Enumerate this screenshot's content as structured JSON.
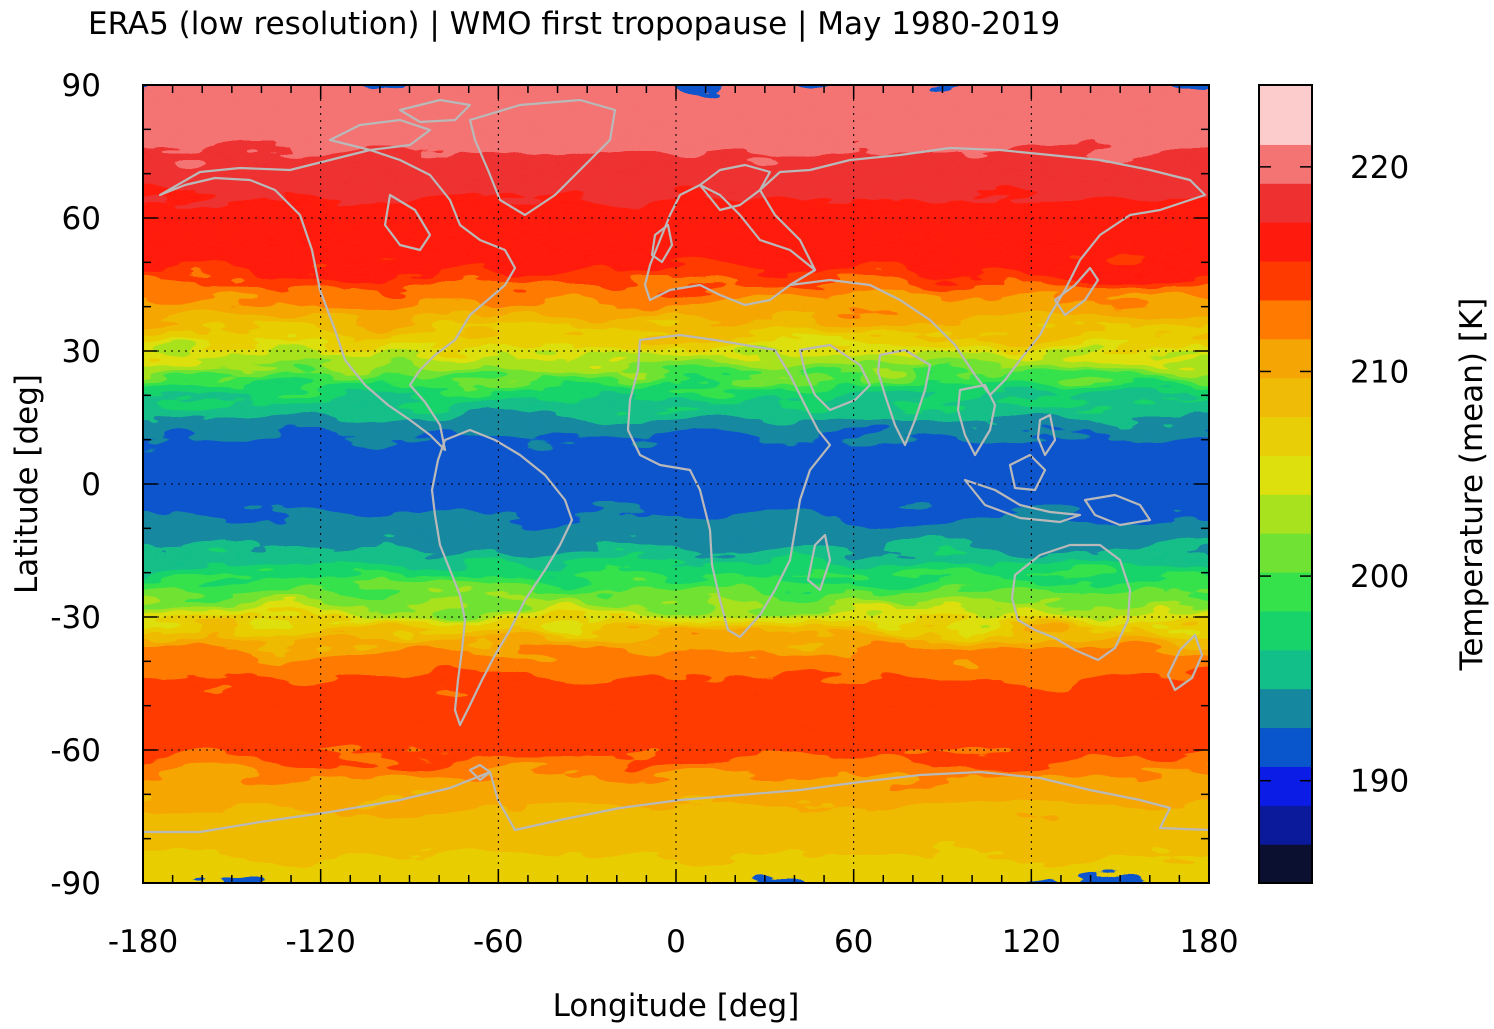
{
  "title": "ERA5 (low resolution) | WMO first tropopause | May 1980-2019",
  "chart_data": {
    "type": "heatmap",
    "projection": "equirectangular",
    "xlabel": "Longitude [deg]",
    "ylabel": "Latitude [deg]",
    "xlim": [
      -180,
      180
    ],
    "ylim": [
      -90,
      90
    ],
    "xticks": [
      "-180",
      "-120",
      "-60",
      "0",
      "60",
      "120",
      "180"
    ],
    "yticks": [
      "90",
      "60",
      "30",
      "0",
      "-30",
      "-60",
      "-90"
    ],
    "grid": true,
    "coastlines": "gray",
    "colorbar": {
      "label": "Temperature (mean) [K]",
      "range": [
        185,
        224
      ],
      "ticks": [
        "190",
        "200",
        "210",
        "220"
      ],
      "levels": [
        {
          "from": 185,
          "to": 186.9,
          "color": "#0b1030"
        },
        {
          "from": 186.9,
          "to": 188.8,
          "color": "#0a1a9a"
        },
        {
          "from": 188.8,
          "to": 190.7,
          "color": "#0a1ce6"
        },
        {
          "from": 190.7,
          "to": 192.6,
          "color": "#0855cc"
        },
        {
          "from": 192.6,
          "to": 194.5,
          "color": "#1588a0"
        },
        {
          "from": 194.5,
          "to": 196.4,
          "color": "#12bf88"
        },
        {
          "from": 196.4,
          "to": 198.3,
          "color": "#18d36a"
        },
        {
          "from": 198.3,
          "to": 200.2,
          "color": "#36e24c"
        },
        {
          "from": 200.2,
          "to": 202.1,
          "color": "#6fe233"
        },
        {
          "from": 202.1,
          "to": 204.0,
          "color": "#a8e21e"
        },
        {
          "from": 204.0,
          "to": 205.9,
          "color": "#dde00c"
        },
        {
          "from": 205.9,
          "to": 207.8,
          "color": "#e8ce06"
        },
        {
          "from": 207.8,
          "to": 209.7,
          "color": "#efbb06"
        },
        {
          "from": 209.7,
          "to": 211.6,
          "color": "#f5a604"
        },
        {
          "from": 211.6,
          "to": 213.5,
          "color": "#ff7a00"
        },
        {
          "from": 213.5,
          "to": 215.4,
          "color": "#ff3a00"
        },
        {
          "from": 215.4,
          "to": 217.3,
          "color": "#ff1a0e"
        },
        {
          "from": 217.3,
          "to": 219.2,
          "color": "#ee3030"
        },
        {
          "from": 219.2,
          "to": 221.1,
          "color": "#f47373"
        },
        {
          "from": 221.1,
          "to": 224.0,
          "color": "#fccccc"
        }
      ]
    },
    "zonal_mean_profile": {
      "lat": [
        90,
        80,
        70,
        62,
        55,
        48,
        44,
        40,
        36,
        32,
        28,
        24,
        20,
        16,
        12,
        6,
        0,
        -6,
        -12,
        -16,
        -20,
        -24,
        -28,
        -32,
        -36,
        -40,
        -46,
        -55,
        -62,
        -66,
        -72,
        -76,
        -82,
        -90
      ],
      "temp": [
        220,
        220,
        218.4,
        217,
        216,
        215.5,
        213,
        211,
        209.5,
        206.5,
        203.5,
        200,
        197,
        194.8,
        193,
        192,
        192.2,
        192.4,
        193.3,
        195,
        197.5,
        200,
        203,
        207,
        210.5,
        212.5,
        214,
        214.2,
        213.5,
        211.5,
        210,
        208.8,
        208,
        207.2
      ]
    }
  }
}
